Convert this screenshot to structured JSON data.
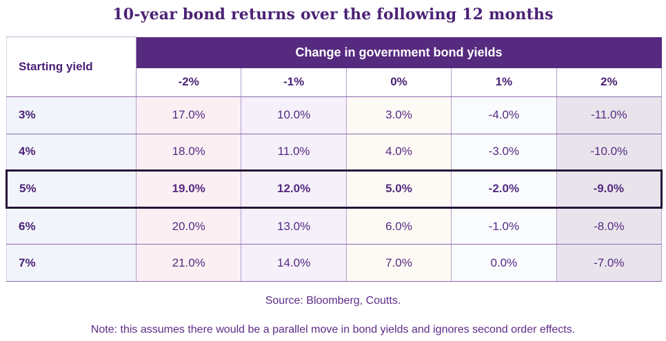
{
  "title": "10-year bond returns over the following 12 months",
  "chart_data": {
    "type": "table",
    "title": "10-year bond returns over the following 12 months",
    "corner_header": "Starting yield",
    "group_header": "Change in government bond yields",
    "column_headers": [
      "-2%",
      "-1%",
      "0%",
      "1%",
      "2%"
    ],
    "rows": [
      {
        "label": "3%",
        "values": [
          "17.0%",
          "10.0%",
          "3.0%",
          "-4.0%",
          "-11.0%"
        ],
        "highlighted": false
      },
      {
        "label": "4%",
        "values": [
          "18.0%",
          "11.0%",
          "4.0%",
          "-3.0%",
          "-10.0%"
        ],
        "highlighted": false
      },
      {
        "label": "5%",
        "values": [
          "19.0%",
          "12.0%",
          "5.0%",
          "-2.0%",
          "-9.0%"
        ],
        "highlighted": true
      },
      {
        "label": "6%",
        "values": [
          "20.0%",
          "13.0%",
          "6.0%",
          "-1.0%",
          "-8.0%"
        ],
        "highlighted": false
      },
      {
        "label": "7%",
        "values": [
          "21.0%",
          "14.0%",
          "7.0%",
          "0.0%",
          "-7.0%"
        ],
        "highlighted": false
      }
    ]
  },
  "footer": {
    "source": "Source: Bloomberg, Coutts.",
    "note": "Note: this assumes there would be a parallel move in bond yields and ignores second order effects."
  },
  "colors": {
    "header_band": "#562a7e",
    "title_text": "#4b2175",
    "cell_text": "#542a80",
    "highlight_border": "#241436",
    "col_yield_bg": "#f1f5fb",
    "col_minus2_bg": "#fbeff3",
    "col_minus1_bg": "#f5f0fa",
    "col_0_bg": "#fdf9f4",
    "col_1_bg": "#fafbfd",
    "col_2_bg": "#e9e4ec"
  }
}
